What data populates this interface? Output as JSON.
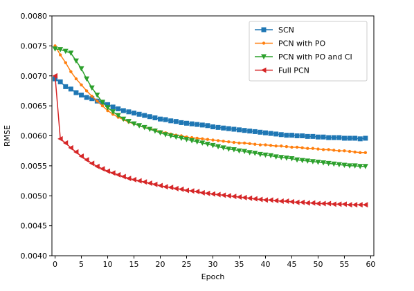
{
  "chart_data": {
    "type": "line",
    "xlabel": "Epoch",
    "ylabel": "RMSE",
    "xlim": [
      -0.6,
      60.6
    ],
    "ylim": [
      0.004,
      0.008
    ],
    "xticks": [
      0,
      5,
      10,
      15,
      20,
      25,
      30,
      35,
      40,
      45,
      50,
      55,
      60
    ],
    "yticks": [
      0.004,
      0.0045,
      0.005,
      0.0055,
      0.006,
      0.0065,
      0.007,
      0.0075,
      0.008
    ],
    "ytick_labels": [
      "0.0040",
      "0.0045",
      "0.0050",
      "0.0055",
      "0.0060",
      "0.0065",
      "0.0070",
      "0.0075",
      "0.0080"
    ],
    "grid": false,
    "legend_position": "top-right",
    "series": [
      {
        "name": "SCN",
        "color": "#1f77b4",
        "marker": "square",
        "values": [
          0.00695,
          0.0069,
          0.00682,
          0.00678,
          0.00672,
          0.00668,
          0.00664,
          0.00662,
          0.00658,
          0.00656,
          0.00652,
          0.00648,
          0.00645,
          0.00642,
          0.0064,
          0.00638,
          0.00636,
          0.00634,
          0.00632,
          0.0063,
          0.00628,
          0.00627,
          0.00625,
          0.00624,
          0.00622,
          0.00621,
          0.0062,
          0.00619,
          0.00618,
          0.00617,
          0.00615,
          0.00614,
          0.00613,
          0.00612,
          0.00611,
          0.0061,
          0.00609,
          0.00608,
          0.00607,
          0.00606,
          0.00605,
          0.00604,
          0.00603,
          0.00602,
          0.00601,
          0.00601,
          0.006,
          0.006,
          0.00599,
          0.00599,
          0.00598,
          0.00598,
          0.00597,
          0.00597,
          0.00597,
          0.00596,
          0.00596,
          0.00596,
          0.00595,
          0.00596
        ]
      },
      {
        "name": "PCN with PO",
        "color": "#ff7f0e",
        "marker": "dot",
        "values": [
          0.0075,
          0.00735,
          0.00722,
          0.00707,
          0.00695,
          0.00685,
          0.00675,
          0.00666,
          0.00658,
          0.0065,
          0.00642,
          0.00636,
          0.00631,
          0.00627,
          0.00623,
          0.0062,
          0.00617,
          0.00614,
          0.00612,
          0.0061,
          0.00607,
          0.00605,
          0.00603,
          0.00601,
          0.006,
          0.00598,
          0.00597,
          0.00596,
          0.00595,
          0.00594,
          0.00593,
          0.00592,
          0.00591,
          0.0059,
          0.00589,
          0.00588,
          0.00588,
          0.00587,
          0.00586,
          0.00585,
          0.00585,
          0.00584,
          0.00583,
          0.00583,
          0.00582,
          0.00581,
          0.00581,
          0.0058,
          0.00579,
          0.00579,
          0.00578,
          0.00577,
          0.00577,
          0.00576,
          0.00575,
          0.00575,
          0.00574,
          0.00573,
          0.00572,
          0.00572
        ]
      },
      {
        "name": "PCN with PO and CI",
        "color": "#2ca02c",
        "marker": "triangle-down",
        "values": [
          0.00745,
          0.00744,
          0.00741,
          0.00738,
          0.00725,
          0.00712,
          0.00695,
          0.0068,
          0.00668,
          0.00656,
          0.00647,
          0.0064,
          0.00634,
          0.00628,
          0.00624,
          0.0062,
          0.00617,
          0.00614,
          0.00611,
          0.00608,
          0.00605,
          0.00602,
          0.006,
          0.00598,
          0.00596,
          0.00594,
          0.00592,
          0.0059,
          0.00588,
          0.00586,
          0.00584,
          0.00582,
          0.0058,
          0.00578,
          0.00577,
          0.00575,
          0.00574,
          0.00572,
          0.00571,
          0.00569,
          0.00568,
          0.00567,
          0.00565,
          0.00564,
          0.00563,
          0.00562,
          0.0056,
          0.00559,
          0.00558,
          0.00557,
          0.00556,
          0.00555,
          0.00554,
          0.00553,
          0.00552,
          0.00551,
          0.0055,
          0.0055,
          0.00549,
          0.00549
        ]
      },
      {
        "name": "Full PCN",
        "color": "#d62728",
        "marker": "triangle-left",
        "values": [
          0.007,
          0.00595,
          0.00588,
          0.0058,
          0.00573,
          0.00566,
          0.0056,
          0.00554,
          0.00549,
          0.00545,
          0.00541,
          0.00538,
          0.00535,
          0.00532,
          0.00529,
          0.00527,
          0.00525,
          0.00523,
          0.00521,
          0.00519,
          0.00517,
          0.00515,
          0.00514,
          0.00512,
          0.00511,
          0.00509,
          0.00508,
          0.00507,
          0.00505,
          0.00504,
          0.00503,
          0.00502,
          0.00501,
          0.005,
          0.00499,
          0.00498,
          0.00497,
          0.00496,
          0.00495,
          0.00494,
          0.00493,
          0.00493,
          0.00492,
          0.00491,
          0.00491,
          0.0049,
          0.00489,
          0.00489,
          0.00488,
          0.00488,
          0.00487,
          0.00487,
          0.00487,
          0.00486,
          0.00486,
          0.00486,
          0.00485,
          0.00485,
          0.00485,
          0.00485
        ]
      }
    ]
  }
}
